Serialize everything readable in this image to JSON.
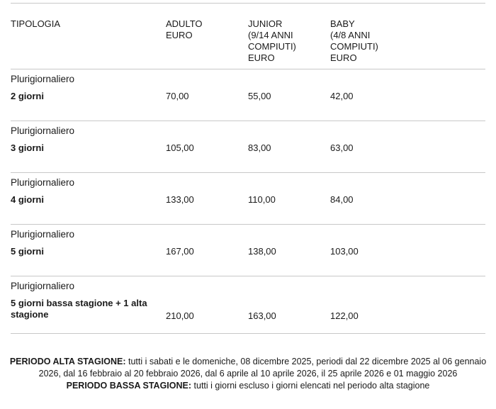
{
  "table": {
    "header": [
      [
        "TIPOLOGIA"
      ],
      [
        "ADULTO",
        "EURO"
      ],
      [
        "JUNIOR",
        "(9/14 ANNI",
        "COMPIUTI)",
        "EURO"
      ],
      [
        "BABY",
        "(4/8 ANNI",
        "COMPIUTI)",
        "EURO"
      ]
    ],
    "rows": [
      {
        "type": "Plurigiornaliero",
        "name": "2 giorni",
        "prices": [
          "70,00",
          "55,00",
          "42,00"
        ]
      },
      {
        "type": "Plurigiornaliero",
        "name": "3 giorni",
        "prices": [
          "105,00",
          "83,00",
          "63,00"
        ]
      },
      {
        "type": "Plurigiornaliero",
        "name": "4 giorni",
        "prices": [
          "133,00",
          "110,00",
          "84,00"
        ]
      },
      {
        "type": "Plurigiornaliero",
        "name": "5 giorni",
        "prices": [
          "167,00",
          "138,00",
          "103,00"
        ]
      },
      {
        "type": "Plurigiornaliero",
        "name": "5 giorni bassa stagione + 1 alta stagione",
        "prices": [
          "210,00",
          "163,00",
          "122,00"
        ]
      }
    ]
  },
  "notes": [
    {
      "label": "PERIODO ALTA STAGIONE:",
      "text": "tutti i sabati e le domeniche, 08 dicembre 2025, periodi dal 22 dicembre 2025 al 06 gennaio 2026, dal 16 febbraio al 20 febbraio 2026, dal 6 aprile al 10 aprile 2026, il 25 aprile 2026 e 01 maggio 2026"
    },
    {
      "label": "PERIODO BASSA STAGIONE:",
      "text": "tutti i giorni escluso i giorni elencati nel periodo alta stagione"
    }
  ]
}
